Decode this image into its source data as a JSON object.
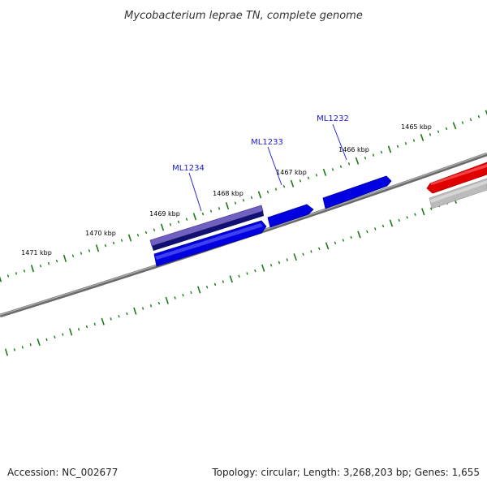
{
  "title": "Mycobacterium leprae TN, complete genome",
  "footer": {
    "accession": "Accession: NC_002677",
    "summary": "Topology: circular; Length: 3,268,203 bp; Genes: 1,655"
  },
  "scale_labels": [
    "1465 kbp",
    "1466 kbp",
    "1467 kbp",
    "1468 kbp",
    "1469 kbp",
    "1470 kbp",
    "1471 kbp"
  ],
  "gene_labels": [
    "ML1232",
    "ML1233",
    "ML1234"
  ],
  "colors": {
    "backbone": "#777777",
    "tick": "#1a7a1a",
    "forward_gene": "#0000e0",
    "forward_gene_light": "#4a4af0",
    "reverse_gene": "#e00000",
    "grey_feature": "#aaaaaa",
    "purple_feature": "#7060c0",
    "navy_feature": "#101070",
    "gene_label": "#1a1acc"
  }
}
